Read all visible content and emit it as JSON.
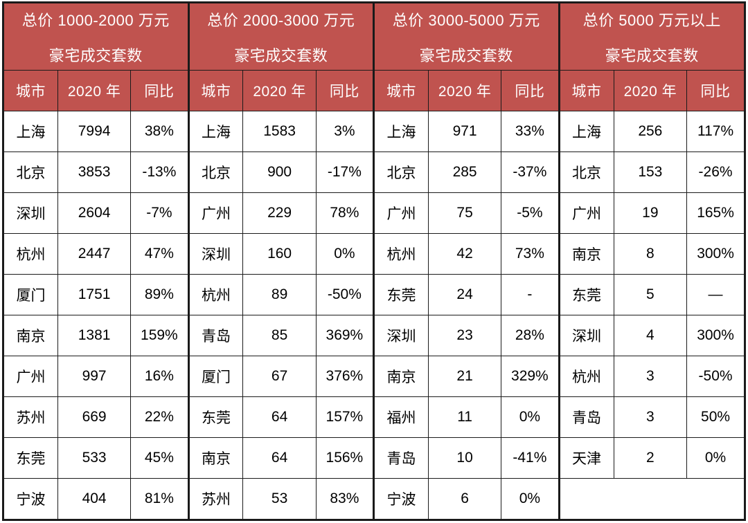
{
  "chart_data": {
    "type": "table",
    "tables": [
      {
        "title_line1": "总价 1000-2000 万元",
        "title_line2": "豪宅成交套数",
        "columns": [
          "城市",
          "2020 年",
          "同比"
        ],
        "rows": [
          [
            "上海",
            "7994",
            "38%"
          ],
          [
            "北京",
            "3853",
            "-13%"
          ],
          [
            "深圳",
            "2604",
            "-7%"
          ],
          [
            "杭州",
            "2447",
            "47%"
          ],
          [
            "厦门",
            "1751",
            "89%"
          ],
          [
            "南京",
            "1381",
            "159%"
          ],
          [
            "广州",
            "997",
            "16%"
          ],
          [
            "苏州",
            "669",
            "22%"
          ],
          [
            "东莞",
            "533",
            "45%"
          ],
          [
            "宁波",
            "404",
            "81%"
          ]
        ]
      },
      {
        "title_line1": "总价 2000-3000 万元",
        "title_line2": "豪宅成交套数",
        "columns": [
          "城市",
          "2020 年",
          "同比"
        ],
        "rows": [
          [
            "上海",
            "1583",
            "3%"
          ],
          [
            "北京",
            "900",
            "-17%"
          ],
          [
            "广州",
            "229",
            "78%"
          ],
          [
            "深圳",
            "160",
            "0%"
          ],
          [
            "杭州",
            "89",
            "-50%"
          ],
          [
            "青岛",
            "85",
            "369%"
          ],
          [
            "厦门",
            "67",
            "376%"
          ],
          [
            "东莞",
            "64",
            "157%"
          ],
          [
            "南京",
            "64",
            "156%"
          ],
          [
            "苏州",
            "53",
            "83%"
          ]
        ]
      },
      {
        "title_line1": "总价 3000-5000 万元",
        "title_line2": "豪宅成交套数",
        "columns": [
          "城市",
          "2020 年",
          "同比"
        ],
        "rows": [
          [
            "上海",
            "971",
            "33%"
          ],
          [
            "北京",
            "285",
            "-37%"
          ],
          [
            "广州",
            "75",
            "-5%"
          ],
          [
            "杭州",
            "42",
            "73%"
          ],
          [
            "东莞",
            "24",
            "-"
          ],
          [
            "深圳",
            "23",
            "28%"
          ],
          [
            "南京",
            "21",
            "329%"
          ],
          [
            "福州",
            "11",
            "0%"
          ],
          [
            "青岛",
            "10",
            "-41%"
          ],
          [
            "宁波",
            "6",
            "0%"
          ]
        ]
      },
      {
        "title_line1": "总价 5000 万元以上",
        "title_line2": "豪宅成交套数",
        "columns": [
          "城市",
          "2020 年",
          "同比"
        ],
        "rows": [
          [
            "上海",
            "256",
            "117%"
          ],
          [
            "北京",
            "153",
            "-26%"
          ],
          [
            "广州",
            "19",
            "165%"
          ],
          [
            "南京",
            "8",
            "300%"
          ],
          [
            "东莞",
            "5",
            "—"
          ],
          [
            "深圳",
            "4",
            "300%"
          ],
          [
            "杭州",
            "3",
            "-50%"
          ],
          [
            "青岛",
            "3",
            "50%"
          ],
          [
            "天津",
            "2",
            "0%"
          ]
        ]
      }
    ]
  },
  "colors": {
    "header_bg": "#c0534f",
    "header_text": "#ffffff",
    "border": "#1a1a1a",
    "cell_bg": "#ffffff",
    "cell_text": "#000000"
  }
}
